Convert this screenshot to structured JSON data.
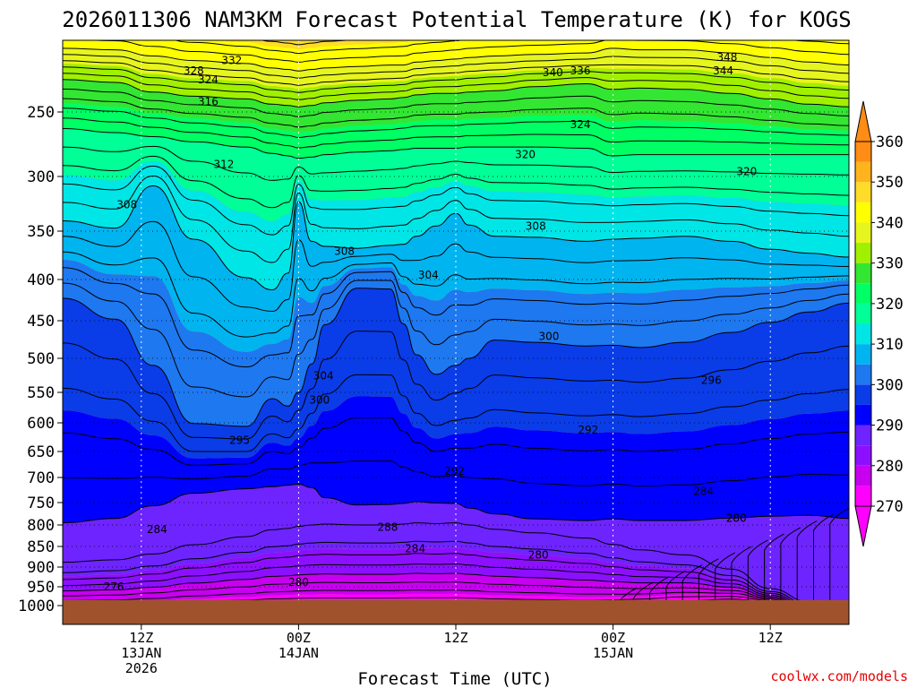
{
  "chart_data": {
    "type": "heatmap",
    "title": "2026011306 NAM3KM Forecast Potential Temperature (K) for KOGS",
    "xlabel": "Forecast Time (UTC)",
    "ylabel": "",
    "credit": "coolwx.com/models",
    "y_axis": {
      "scale": "log-pressure",
      "inverted": true,
      "ticks": [
        "250",
        "300",
        "350",
        "400",
        "450",
        "500",
        "550",
        "600",
        "650",
        "700",
        "750",
        "800",
        "850",
        "900",
        "950",
        "1000"
      ],
      "tick_values": [
        250,
        300,
        350,
        400,
        450,
        500,
        550,
        600,
        650,
        700,
        750,
        800,
        850,
        900,
        950,
        1000
      ],
      "ylim": [
        200,
        1030
      ]
    },
    "x_axis": {
      "unit": "hours since 2026-01-13 06Z",
      "xlim": [
        0,
        60
      ],
      "ticks": [
        {
          "hour": 6,
          "lines": [
            "12Z",
            "13JAN",
            "2026"
          ]
        },
        {
          "hour": 18,
          "lines": [
            "00Z",
            "14JAN"
          ]
        },
        {
          "hour": 30,
          "lines": [
            "12Z"
          ]
        },
        {
          "hour": 42,
          "lines": [
            "00Z",
            "15JAN"
          ]
        },
        {
          "hour": 54,
          "lines": [
            "12Z"
          ]
        }
      ]
    },
    "grid": true,
    "colorbar": {
      "levels": [
        270,
        280,
        290,
        300,
        310,
        320,
        330,
        340,
        350,
        360
      ],
      "labels": [
        "270",
        "280",
        "290",
        "300",
        "310",
        "320",
        "330",
        "340",
        "350",
        "360"
      ],
      "colors": [
        "#ff00ff",
        "#c800f0",
        "#8c10ff",
        "#6e24ff",
        "#0000ff",
        "#0a3ce8",
        "#1e78f0",
        "#00b4f0",
        "#00e6e6",
        "#00ff96",
        "#00ff64",
        "#32e632",
        "#a0f000",
        "#e6f51e",
        "#ffff00",
        "#ffdc28",
        "#ffb41e",
        "#ff8c14"
      ],
      "extend": "both"
    },
    "contour_interval": 2,
    "profile_hours": [
      0,
      4,
      6.9,
      10,
      14,
      16,
      17.2,
      18,
      19,
      20,
      22.5,
      25,
      26,
      27,
      28.5,
      30,
      31,
      33,
      36,
      40,
      42,
      44,
      47.5,
      51,
      54,
      57,
      60
    ],
    "profile_points": {
      "288": [
        888,
        882,
        868,
        846,
        827,
        811,
        808,
        803,
        800,
        798,
        800,
        800,
        798,
        795,
        797,
        795,
        800,
        810,
        818,
        830,
        845,
        858,
        870,
        905,
        955,
        990,
        1030
      ],
      "290": [
        795,
        785,
        757,
        731,
        722,
        718,
        715,
        713,
        720,
        740,
        755,
        754,
        752,
        748,
        751,
        752,
        762,
        775,
        786,
        790,
        786,
        790,
        790,
        784,
        780,
        778,
        785
      ],
      "300": [
        422,
        448,
        510,
        601,
        606,
        560,
        572,
        550,
        508,
        455,
        410,
        411,
        454,
        495,
        523,
        510,
        500,
        475,
        478,
        483,
        482,
        485,
        478,
        465,
        452,
        439,
        428
      ],
      "310": [
        340,
        347,
        308,
        358,
        398,
        412,
        393,
        322,
        360,
        365,
        367,
        364,
        363,
        355,
        345,
        333,
        344,
        355,
        356,
        360,
        358,
        357,
        355,
        360,
        368,
        372,
        376
      ],
      "320": [
        262,
        265,
        268,
        272,
        276,
        281,
        283,
        285,
        284,
        282,
        280,
        279,
        278,
        277,
        277,
        277,
        276,
        276,
        276,
        277,
        283,
        282,
        282,
        282,
        282,
        282,
        282
      ],
      "330": [
        226,
        228,
        235,
        238,
        240,
        244,
        245,
        246,
        245,
        243,
        241,
        240,
        239,
        237,
        236,
        236,
        235,
        234,
        231,
        229,
        233,
        232,
        233,
        236,
        240,
        244,
        246
      ],
      "340": [
        205,
        206,
        210,
        213,
        215,
        218,
        219,
        220,
        219,
        218,
        217,
        216,
        216,
        214,
        213,
        212,
        211,
        210,
        209,
        208,
        205,
        206,
        206,
        208,
        211,
        214,
        216
      ],
      "350": [
        178,
        179,
        181,
        185,
        188,
        190,
        191,
        192,
        191,
        190,
        189,
        188,
        187,
        186,
        185,
        184,
        183,
        182,
        181,
        180,
        179,
        178,
        179,
        180,
        181,
        182,
        183
      ],
      "360": [
        155,
        156,
        158,
        160,
        162,
        163,
        164,
        165,
        164,
        163,
        162,
        161,
        160,
        159,
        158,
        157,
        156,
        156,
        155,
        154,
        154,
        155,
        155,
        156,
        157,
        158,
        159
      ]
    },
    "contour_labels": [
      {
        "text": "332",
        "hour": 12.9,
        "pressure": 213
      },
      {
        "text": "328",
        "hour": 10,
        "pressure": 220
      },
      {
        "text": "324",
        "hour": 11.1,
        "pressure": 226
      },
      {
        "text": "316",
        "hour": 11.1,
        "pressure": 242
      },
      {
        "text": "312",
        "hour": 12.3,
        "pressure": 290
      },
      {
        "text": "308",
        "hour": 4.9,
        "pressure": 325
      },
      {
        "text": "308",
        "hour": 21.5,
        "pressure": 370
      },
      {
        "text": "304",
        "hour": 27.9,
        "pressure": 395
      },
      {
        "text": "308",
        "hour": 36.1,
        "pressure": 345
      },
      {
        "text": "340",
        "hour": 37.4,
        "pressure": 221
      },
      {
        "text": "336",
        "hour": 39.5,
        "pressure": 220
      },
      {
        "text": "348",
        "hour": 50.7,
        "pressure": 211
      },
      {
        "text": "344",
        "hour": 50.4,
        "pressure": 220
      },
      {
        "text": "324",
        "hour": 39.5,
        "pressure": 259
      },
      {
        "text": "320",
        "hour": 35.3,
        "pressure": 282
      },
      {
        "text": "320",
        "hour": 52.2,
        "pressure": 296
      },
      {
        "text": "300",
        "hour": 37.1,
        "pressure": 470
      },
      {
        "text": "304",
        "hour": 19.9,
        "pressure": 525
      },
      {
        "text": "300",
        "hour": 19.6,
        "pressure": 562
      },
      {
        "text": "296",
        "hour": 49.5,
        "pressure": 532
      },
      {
        "text": "295",
        "hour": 13.5,
        "pressure": 630
      },
      {
        "text": "292",
        "hour": 40.1,
        "pressure": 612
      },
      {
        "text": "292",
        "hour": 29.9,
        "pressure": 688
      },
      {
        "text": "284",
        "hour": 48.9,
        "pressure": 727
      },
      {
        "text": "288",
        "hour": 24.8,
        "pressure": 805
      },
      {
        "text": "284",
        "hour": 26.9,
        "pressure": 855
      },
      {
        "text": "280",
        "hour": 51.4,
        "pressure": 785
      },
      {
        "text": "284",
        "hour": 7.2,
        "pressure": 810
      },
      {
        "text": "280",
        "hour": 36.3,
        "pressure": 870
      },
      {
        "text": "280",
        "hour": 18,
        "pressure": 938
      },
      {
        "text": "276",
        "hour": 3.9,
        "pressure": 950
      }
    ],
    "ground_surface_pressure": 985
  }
}
